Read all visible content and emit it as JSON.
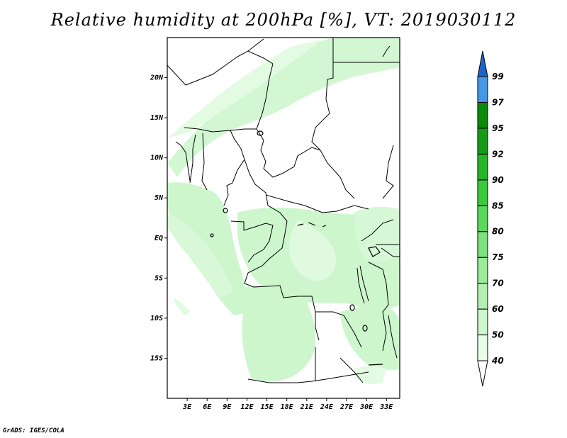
{
  "title": "Relative humidity at 200hPa [%], VT: 2019030112",
  "credit": "GrADS: IGES/COLA",
  "map": {
    "region": "Central Africa",
    "lon_range": [
      0,
      35
    ],
    "lat_range": [
      -20,
      25
    ],
    "lon_ticks": [
      {
        "value": 3,
        "label": "3E"
      },
      {
        "value": 6,
        "label": "6E"
      },
      {
        "value": 9,
        "label": "9E"
      },
      {
        "value": 12,
        "label": "12E"
      },
      {
        "value": 15,
        "label": "15E"
      },
      {
        "value": 18,
        "label": "18E"
      },
      {
        "value": 21,
        "label": "21E"
      },
      {
        "value": 24,
        "label": "24E"
      },
      {
        "value": 27,
        "label": "27E"
      },
      {
        "value": 30,
        "label": "30E"
      },
      {
        "value": 33,
        "label": "33E"
      }
    ],
    "lat_ticks": [
      {
        "value": 20,
        "label": "20N"
      },
      {
        "value": 15,
        "label": "15N"
      },
      {
        "value": 10,
        "label": "10N"
      },
      {
        "value": 5,
        "label": "5N"
      },
      {
        "value": 0,
        "label": "EQ"
      },
      {
        "value": -5,
        "label": "5S"
      },
      {
        "value": -10,
        "label": "10S"
      },
      {
        "value": -15,
        "label": "15S"
      }
    ]
  },
  "colorbar": {
    "levels": [
      {
        "label": "40",
        "color": "#e6fde6"
      },
      {
        "label": "50",
        "color": "#cdf6cd"
      },
      {
        "label": "60",
        "color": "#b4f0b4"
      },
      {
        "label": "70",
        "color": "#9beb9b"
      },
      {
        "label": "75",
        "color": "#7de27d"
      },
      {
        "label": "80",
        "color": "#5ad85a"
      },
      {
        "label": "85",
        "color": "#3cc83c"
      },
      {
        "label": "90",
        "color": "#28b428"
      },
      {
        "label": "92",
        "color": "#169b16"
      },
      {
        "label": "95",
        "color": "#0a8a0a"
      },
      {
        "label": "97",
        "color": "#4697e6"
      },
      {
        "label": "99",
        "color": "#2a78d2"
      }
    ],
    "top_color": "#1e64c8",
    "bottom_color": "#ffffff"
  },
  "colors": {
    "light": "#cdf6cd",
    "lighter": "#e1fbe1",
    "boundary": "#000000"
  }
}
